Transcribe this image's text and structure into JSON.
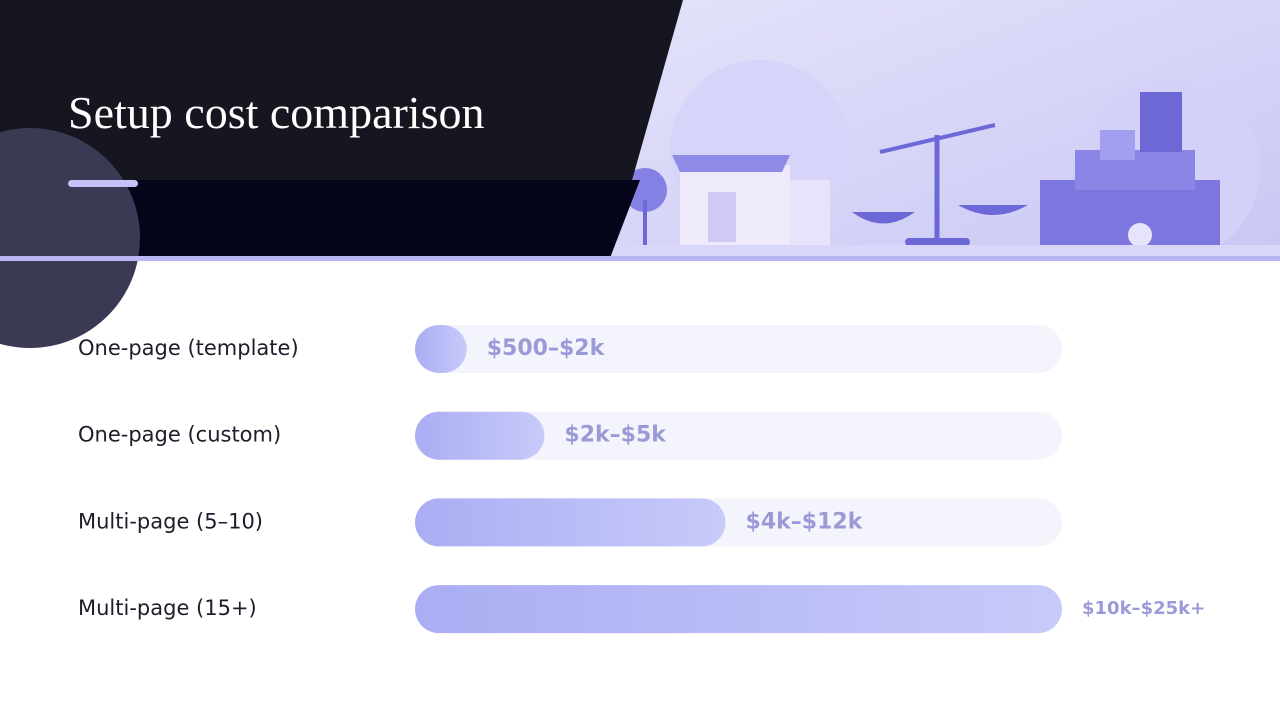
{
  "header": {
    "title": "Setup cost comparison"
  },
  "chart_data": {
    "type": "bar",
    "orientation": "horizontal",
    "categories": [
      "One-page (template)",
      "One-page (custom)",
      "Multi-page (5–10)",
      "Multi-page (15+)"
    ],
    "values": [
      2000,
      5000,
      12000,
      25000
    ],
    "value_labels": [
      "$500–$2k",
      "$2k–$5k",
      "$4k–$12k",
      "$10k–$25k+"
    ],
    "color": "#b3b5f7"
  }
}
